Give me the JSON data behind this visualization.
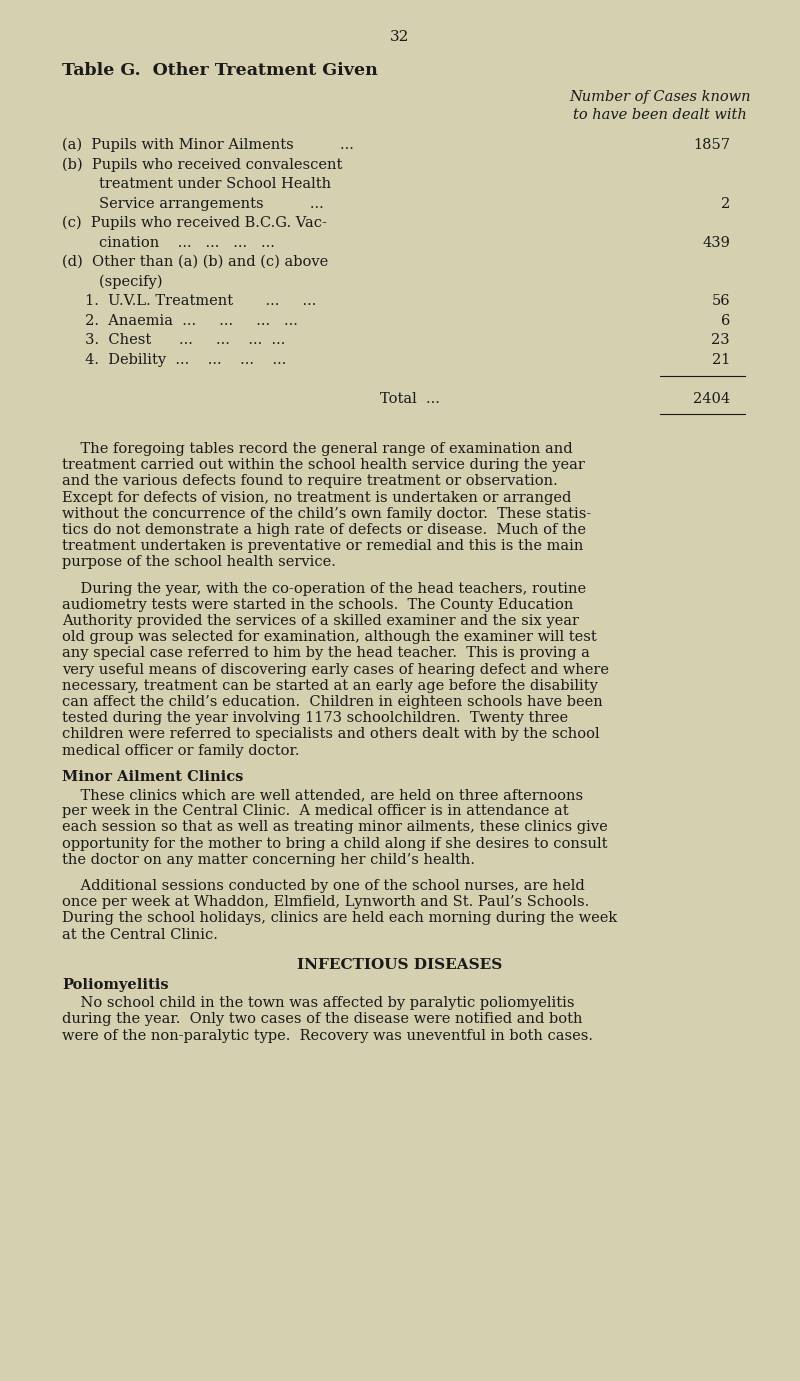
{
  "bg_color": "#d4d0b0",
  "text_color": "#1a1a1a",
  "page_number": "32",
  "table_title": "Table G.  Other Treatment Given",
  "col_header_line1": "Number of Cases known",
  "col_header_line2": "to have been dealt with",
  "total_label": "Total  ...",
  "total_value": "2404",
  "minor_ailment_heading": "Minor Ailment Clinics",
  "infectious_heading": "INFECTIOUS DISEASES",
  "polio_heading": "Poliomyelitis",
  "p1_lines": [
    "    The foregoing tables record the general range of examination and",
    "treatment carried out within the school health service during the year",
    "and the various defects found to require treatment or observation.",
    "Except for defects of vision, no treatment is undertaken or arranged",
    "without the concurrence of the child’s own family doctor.  These statis-",
    "tics do not demonstrate a high rate of defects or disease.  Much of the",
    "treatment undertaken is preventative or remedial and this is the main",
    "purpose of the school health service."
  ],
  "p2_lines": [
    "    During the year, with the co-operation of the head teachers, routine",
    "audiometry tests were started in the schools.  The County Education",
    "Authority provided the services of a skilled examiner and the six year",
    "old group was selected for examination, although the examiner will test",
    "any special case referred to him by the head teacher.  This is proving a",
    "very useful means of discovering early cases of hearing defect and where",
    "necessary, treatment can be started at an early age before the disability",
    "can affect the child’s education.  Children in eighteen schools have been",
    "tested during the year involving 1173 schoolchildren.  Twenty three",
    "children were referred to specialists and others dealt with by the school",
    "medical officer or family doctor."
  ],
  "mac1_lines": [
    "    These clinics which are well attended, are held on three afternoons",
    "per week in the Central Clinic.  A medical officer is in attendance at",
    "each session so that as well as treating minor ailments, these clinics give",
    "opportunity for the mother to bring a child along if she desires to consult",
    "the doctor on any matter concerning her child’s health."
  ],
  "mac2_lines": [
    "    Additional sessions conducted by one of the school nurses, are held",
    "once per week at Whaddon, Elmfield, Lynworth and St. Paul’s Schools.",
    "During the school holidays, clinics are held each morning during the week",
    "at the Central Clinic."
  ],
  "polio_lines": [
    "    No school child in the town was affected by paralytic poliomyelitis",
    "during the year.  Only two cases of the disease were notified and both",
    "were of the non-paralytic type.  Recovery was uneventful in both cases."
  ],
  "table_rows": [
    {
      "label": "(a)  Pupils with Minor Ailments          ...",
      "value": "1857"
    },
    {
      "label": "(b)  Pupils who received convalescent",
      "value": ""
    },
    {
      "label": "        treatment under School Health",
      "value": ""
    },
    {
      "label": "        Service arrangements          ...",
      "value": "2"
    },
    {
      "label": "(c)  Pupils who received B.C.G. Vac-",
      "value": ""
    },
    {
      "label": "        cination    ...   ...   ...   ...",
      "value": "439"
    },
    {
      "label": "(d)  Other than (a) (b) and (c) above",
      "value": ""
    },
    {
      "label": "        (specify)",
      "value": ""
    },
    {
      "label": "     1.  U.V.L. Treatment       ...     ...",
      "value": "56"
    },
    {
      "label": "     2.  Anaemia  ...     ...     ...   ...",
      "value": "6"
    },
    {
      "label": "     3.  Chest      ...     ...    ...  ...",
      "value": "23"
    },
    {
      "label": "     4.  Debility  ...    ...    ...    ...",
      "value": "21"
    }
  ]
}
